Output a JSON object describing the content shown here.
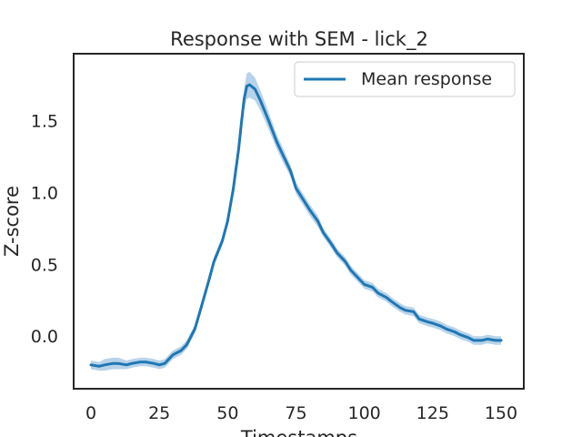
{
  "chart_data": {
    "type": "line",
    "title": "Response with SEM - lick_2",
    "xlabel": "Timestamps",
    "ylabel": "Z-score",
    "xlim": [
      -6,
      158
    ],
    "ylim": [
      -0.36,
      1.96
    ],
    "xticks": [
      0,
      25,
      50,
      75,
      100,
      125,
      150
    ],
    "xtick_labels": [
      "0",
      "25",
      "50",
      "75",
      "100",
      "125",
      "150"
    ],
    "yticks": [
      0.0,
      0.5,
      1.0,
      1.5
    ],
    "ytick_labels": [
      "0.0",
      "0.5",
      "1.0",
      "1.5"
    ],
    "grid": false,
    "legend_position": "upper right",
    "series": [
      {
        "name": "Mean response",
        "color": "#1f77b4",
        "band_color": "#a6c8e4",
        "x": [
          0,
          3,
          5,
          8,
          10,
          13,
          15,
          18,
          20,
          23,
          25,
          27,
          30,
          33,
          35,
          38,
          40,
          43,
          45,
          48,
          50,
          52,
          54,
          55,
          56,
          57,
          58,
          60,
          62,
          65,
          68,
          70,
          73,
          75,
          78,
          80,
          83,
          85,
          88,
          90,
          93,
          95,
          98,
          100,
          103,
          105,
          108,
          110,
          113,
          115,
          118,
          120,
          123,
          125,
          128,
          130,
          133,
          135,
          138,
          140,
          143,
          145,
          148,
          150
        ],
        "y": [
          -0.2,
          -0.21,
          -0.2,
          -0.19,
          -0.19,
          -0.2,
          -0.19,
          -0.18,
          -0.18,
          -0.19,
          -0.2,
          -0.19,
          -0.13,
          -0.1,
          -0.06,
          0.05,
          0.18,
          0.38,
          0.52,
          0.66,
          0.8,
          1.02,
          1.3,
          1.48,
          1.65,
          1.74,
          1.75,
          1.72,
          1.64,
          1.5,
          1.35,
          1.27,
          1.15,
          1.03,
          0.94,
          0.88,
          0.8,
          0.72,
          0.64,
          0.58,
          0.52,
          0.46,
          0.4,
          0.36,
          0.34,
          0.3,
          0.27,
          0.24,
          0.2,
          0.18,
          0.17,
          0.12,
          0.1,
          0.09,
          0.07,
          0.05,
          0.03,
          0.01,
          -0.01,
          -0.03,
          -0.03,
          -0.02,
          -0.03,
          -0.03
        ],
        "sem": [
          0.03,
          0.03,
          0.04,
          0.04,
          0.04,
          0.03,
          0.03,
          0.03,
          0.03,
          0.03,
          0.03,
          0.03,
          0.03,
          0.03,
          0.03,
          0.03,
          0.03,
          0.03,
          0.03,
          0.03,
          0.03,
          0.04,
          0.05,
          0.06,
          0.07,
          0.09,
          0.09,
          0.08,
          0.07,
          0.06,
          0.05,
          0.05,
          0.04,
          0.04,
          0.04,
          0.04,
          0.04,
          0.03,
          0.03,
          0.03,
          0.03,
          0.03,
          0.03,
          0.03,
          0.03,
          0.03,
          0.03,
          0.03,
          0.03,
          0.03,
          0.03,
          0.03,
          0.03,
          0.03,
          0.03,
          0.03,
          0.03,
          0.03,
          0.03,
          0.03,
          0.03,
          0.03,
          0.03,
          0.03
        ]
      }
    ]
  }
}
